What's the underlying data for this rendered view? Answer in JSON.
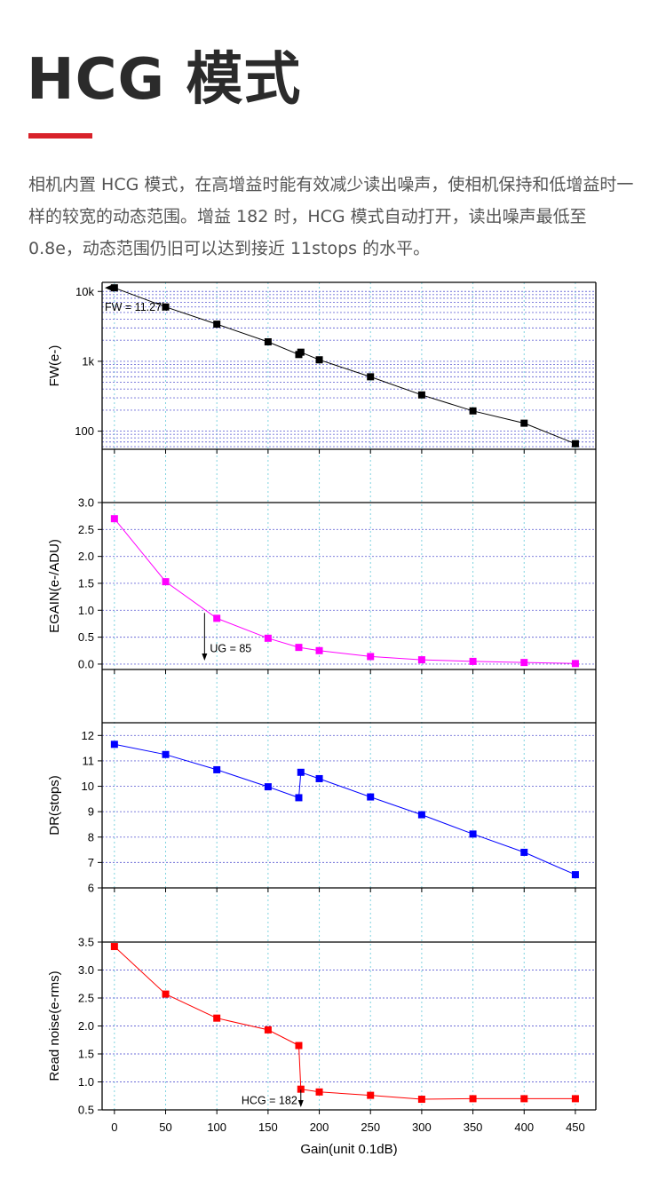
{
  "header": {
    "title": "HCG 模式",
    "accent_color": "#d8222a"
  },
  "intro": {
    "text": "相机内置 HCG 模式，在高增益时能有效减少读出噪声，使相机保持和低增益时一样的较宽的动态范围。增益 182 时，HCG 模式自动打开，读出噪声最低至 0.8e，动态范围仍旧可以达到接近 11stops 的水平。"
  },
  "chart_data": {
    "type": "line",
    "xlabel": "Gain(unit 0.1dB)",
    "xlim": [
      -12,
      470
    ],
    "xticks": [
      0,
      50,
      100,
      150,
      200,
      250,
      300,
      350,
      400,
      450
    ],
    "panels": [
      {
        "name": "fw",
        "ylabel": "FW(e-)",
        "scale": "log",
        "ylim": [
          55,
          13500
        ],
        "yticks": [
          100,
          1000,
          10000
        ],
        "ytick_labels": [
          "100",
          "1k",
          "10k"
        ],
        "color": "#000000",
        "series": [
          {
            "name": "FW",
            "x": [
              0,
              50,
              100,
              150,
              180,
              182,
              200,
              250,
              300,
              350,
              400,
              450
            ],
            "values": [
              11270,
              6000,
              3400,
              1900,
              1250,
              1350,
              1050,
              600,
              330,
              195,
              130,
              66
            ]
          }
        ],
        "annotation": {
          "text": "FW = 11.27k",
          "x": 0,
          "y": 11270
        }
      },
      {
        "name": "egain",
        "ylabel": "EGAIN(e-/ADU)",
        "scale": "linear",
        "ylim": [
          -0.1,
          3.0
        ],
        "yticks": [
          0.0,
          0.5,
          1.0,
          1.5,
          2.0,
          2.5,
          3.0
        ],
        "ytick_labels": [
          "0.0",
          "0.5",
          "1.0",
          "1.5",
          "2.0",
          "2.5",
          "3.0"
        ],
        "color": "#ff00ff",
        "series": [
          {
            "name": "EGAIN",
            "x": [
              0,
              50,
              100,
              150,
              180,
              200,
              250,
              300,
              350,
              400,
              450
            ],
            "values": [
              2.7,
              1.53,
              0.85,
              0.48,
              0.31,
              0.25,
              0.14,
              0.08,
              0.05,
              0.03,
              0.01
            ]
          }
        ],
        "annotation": {
          "text": "UG = 85",
          "x": 88,
          "y": 0.0
        }
      },
      {
        "name": "dr",
        "ylabel": "DR(stops)",
        "scale": "linear",
        "ylim": [
          6,
          12.5
        ],
        "yticks": [
          6,
          7,
          8,
          9,
          10,
          11,
          12
        ],
        "ytick_labels": [
          "6",
          "7",
          "8",
          "9",
          "10",
          "11",
          "12"
        ],
        "color": "#0000ff",
        "series": [
          {
            "name": "DR",
            "x": [
              0,
              50,
              100,
              150,
              180,
              182,
              200,
              250,
              300,
              350,
              400,
              450
            ],
            "values": [
              11.65,
              11.25,
              10.65,
              9.98,
              9.55,
              10.55,
              10.3,
              9.58,
              8.88,
              8.12,
              7.4,
              6.52
            ]
          }
        ]
      },
      {
        "name": "noise",
        "ylabel": "Read noise(e-rms)",
        "scale": "linear",
        "ylim": [
          0.5,
          3.5
        ],
        "yticks": [
          0.5,
          1.0,
          1.5,
          2.0,
          2.5,
          3.0,
          3.5
        ],
        "ytick_labels": [
          "0.5",
          "1.0",
          "1.5",
          "2.0",
          "2.5",
          "3.0",
          "3.5"
        ],
        "color": "#ff0000",
        "series": [
          {
            "name": "Read noise",
            "x": [
              0,
              50,
              100,
              150,
              180,
              182,
              200,
              250,
              300,
              350,
              400,
              450
            ],
            "values": [
              3.42,
              2.57,
              2.14,
              1.93,
              1.65,
              0.87,
              0.82,
              0.76,
              0.69,
              0.7,
              0.7,
              0.7
            ]
          }
        ],
        "annotation": {
          "text": "HCG = 182",
          "x": 182,
          "y": 0.5
        }
      }
    ]
  }
}
